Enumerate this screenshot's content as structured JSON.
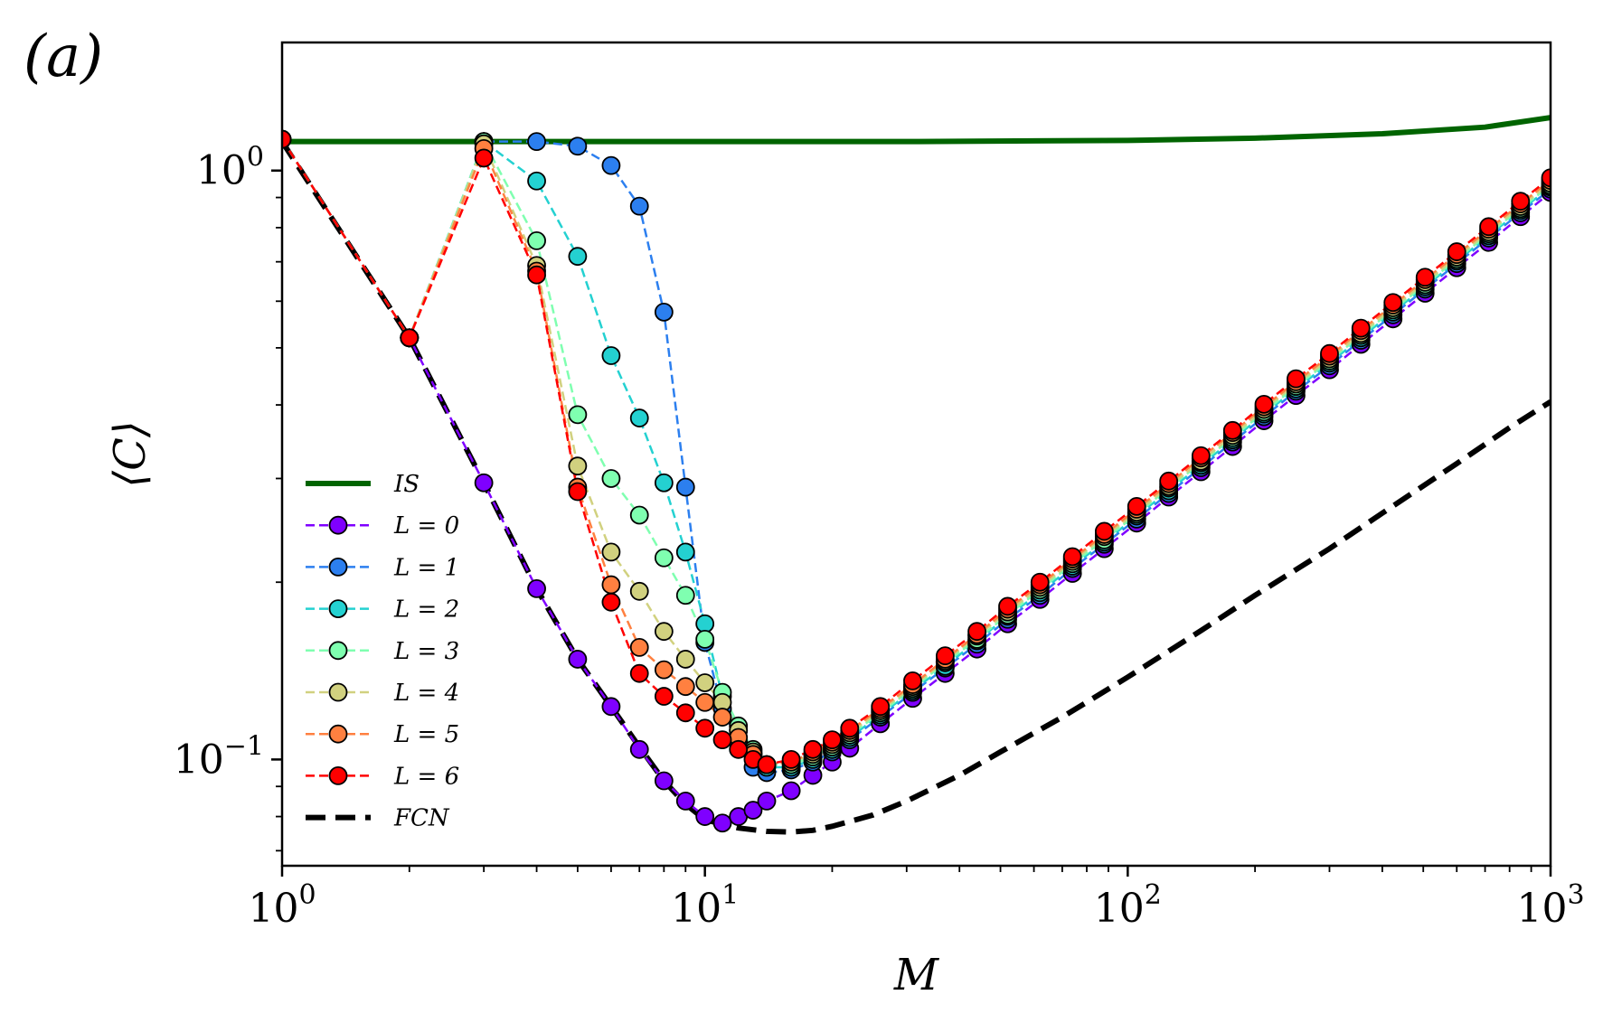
{
  "panel_label": "(a)",
  "chart_data": {
    "type": "line",
    "title": "",
    "xlabel": "M",
    "ylabel": "⟨C⟩",
    "xscale": "log",
    "yscale": "log",
    "xlim": [
      1,
      1000
    ],
    "ylim": [
      0.066,
      1.65
    ],
    "x_ticks": [
      {
        "value": 1,
        "base": "10",
        "exp": "0"
      },
      {
        "value": 10,
        "base": "10",
        "exp": "1"
      },
      {
        "value": 100,
        "base": "10",
        "exp": "2"
      },
      {
        "value": 1000,
        "base": "10",
        "exp": "3"
      }
    ],
    "y_ticks": [
      {
        "value": 0.1,
        "base": "10",
        "exp": "−1"
      },
      {
        "value": 1,
        "base": "10",
        "exp": "0"
      }
    ],
    "legend_position": "lower-left",
    "series": [
      {
        "name": "IS",
        "label": "IS",
        "color": "#006400",
        "style": "solid",
        "marker": false,
        "x": [
          1,
          3,
          10,
          30,
          100,
          200,
          400,
          700,
          1000
        ],
        "y": [
          1.12,
          1.12,
          1.12,
          1.12,
          1.125,
          1.135,
          1.155,
          1.185,
          1.23
        ]
      },
      {
        "name": "L = 0",
        "label": "L = 0",
        "color": "#7f00ff",
        "style": "dashed",
        "marker": true,
        "x": [
          1,
          2,
          3,
          4,
          5,
          6,
          7,
          8,
          9,
          10,
          11,
          12,
          13,
          14,
          16,
          18,
          20,
          22,
          26,
          31,
          37,
          44,
          52,
          62,
          74,
          88,
          105,
          125,
          149,
          177,
          210,
          250,
          300,
          356,
          424,
          505,
          600,
          714,
          849,
          1000
        ],
        "y": [
          1.13,
          0.52,
          0.295,
          0.195,
          0.148,
          0.123,
          0.104,
          0.092,
          0.085,
          0.08,
          0.078,
          0.08,
          0.082,
          0.085,
          0.0885,
          0.094,
          0.099,
          0.1045,
          0.115,
          0.127,
          0.14,
          0.154,
          0.17,
          0.187,
          0.207,
          0.228,
          0.252,
          0.279,
          0.308,
          0.34,
          0.376,
          0.415,
          0.459,
          0.507,
          0.56,
          0.619,
          0.684,
          0.755,
          0.835,
          0.918
        ]
      },
      {
        "name": "L = 1",
        "label": "L = 1",
        "color": "#2c7fef",
        "style": "dashed",
        "marker": true,
        "x": [
          1,
          2,
          3,
          4,
          5,
          6,
          7,
          8,
          9,
          10,
          11,
          12,
          13,
          14,
          16,
          18,
          20,
          22,
          26,
          31,
          37,
          44,
          52,
          62,
          74,
          88,
          105,
          125,
          149,
          177,
          210,
          250,
          300,
          356,
          424,
          505,
          600,
          714,
          849,
          1000
        ],
        "y": [
          1.13,
          0.52,
          1.12,
          1.12,
          1.1,
          1.02,
          0.87,
          0.575,
          0.29,
          0.158,
          0.122,
          0.107,
          0.097,
          0.095,
          0.096,
          0.099,
          0.103,
          0.108,
          0.118,
          0.13,
          0.143,
          0.157,
          0.173,
          0.19,
          0.211,
          0.232,
          0.256,
          0.283,
          0.313,
          0.346,
          0.382,
          0.422,
          0.466,
          0.515,
          0.569,
          0.629,
          0.695,
          0.768,
          0.848,
          0.93
        ]
      },
      {
        "name": "L = 2",
        "label": "L = 2",
        "color": "#24d1d1",
        "style": "dashed",
        "marker": true,
        "x": [
          1,
          2,
          3,
          4,
          5,
          6,
          7,
          8,
          9,
          10,
          11,
          12,
          13,
          14,
          16,
          18,
          20,
          22,
          26,
          31,
          37,
          44,
          52,
          62,
          74,
          88,
          105,
          125,
          149,
          177,
          210,
          250,
          300,
          356,
          424,
          505,
          600,
          714,
          849,
          1000
        ],
        "y": [
          1.13,
          0.52,
          1.12,
          0.96,
          0.715,
          0.485,
          0.38,
          0.295,
          0.225,
          0.17,
          0.128,
          0.112,
          0.102,
          0.097,
          0.097,
          0.1,
          0.104,
          0.109,
          0.119,
          0.131,
          0.144,
          0.159,
          0.175,
          0.192,
          0.213,
          0.234,
          0.259,
          0.286,
          0.316,
          0.349,
          0.386,
          0.426,
          0.471,
          0.52,
          0.575,
          0.635,
          0.702,
          0.775,
          0.856,
          0.938
        ]
      },
      {
        "name": "L = 3",
        "label": "L = 3",
        "color": "#7fffb0",
        "style": "dashed",
        "marker": true,
        "x": [
          1,
          2,
          3,
          4,
          5,
          6,
          7,
          8,
          9,
          10,
          11,
          12,
          13,
          14,
          16,
          18,
          20,
          22,
          26,
          31,
          37,
          44,
          52,
          62,
          74,
          88,
          105,
          125,
          149,
          177,
          210,
          250,
          300,
          356,
          424,
          505,
          600,
          714,
          849,
          1000
        ],
        "y": [
          1.13,
          0.52,
          1.12,
          0.76,
          0.385,
          0.3,
          0.26,
          0.22,
          0.19,
          0.16,
          0.13,
          0.114,
          0.104,
          0.098,
          0.098,
          0.101,
          0.105,
          0.11,
          0.12,
          0.132,
          0.146,
          0.16,
          0.176,
          0.194,
          0.215,
          0.236,
          0.261,
          0.289,
          0.319,
          0.352,
          0.389,
          0.43,
          0.475,
          0.525,
          0.58,
          0.64,
          0.707,
          0.781,
          0.862,
          0.944
        ]
      },
      {
        "name": "L = 4",
        "label": "L = 4",
        "color": "#d1d17f",
        "style": "dashed",
        "marker": true,
        "x": [
          1,
          2,
          3,
          4,
          5,
          6,
          7,
          8,
          9,
          10,
          11,
          12,
          13,
          14,
          16,
          18,
          20,
          22,
          26,
          31,
          37,
          44,
          52,
          62,
          74,
          88,
          105,
          125,
          149,
          177,
          210,
          250,
          300,
          356,
          424,
          505,
          600,
          714,
          849,
          1000
        ],
        "y": [
          1.13,
          0.52,
          1.11,
          0.69,
          0.315,
          0.225,
          0.193,
          0.165,
          0.148,
          0.135,
          0.125,
          0.112,
          0.103,
          0.098,
          0.099,
          0.102,
          0.106,
          0.111,
          0.121,
          0.133,
          0.147,
          0.162,
          0.178,
          0.196,
          0.217,
          0.239,
          0.263,
          0.291,
          0.321,
          0.355,
          0.393,
          0.434,
          0.479,
          0.529,
          0.585,
          0.646,
          0.713,
          0.787,
          0.869,
          0.952
        ]
      },
      {
        "name": "L = 5",
        "label": "L = 5",
        "color": "#ff8040",
        "style": "dashed",
        "marker": true,
        "x": [
          1,
          2,
          3,
          4,
          5,
          6,
          7,
          8,
          9,
          10,
          11,
          12,
          13,
          14,
          16,
          18,
          20,
          22,
          26,
          31,
          37,
          44,
          52,
          62,
          74,
          88,
          105,
          125,
          149,
          177,
          210,
          250,
          300,
          356,
          424,
          505,
          600,
          714,
          849,
          1000
        ],
        "y": [
          1.13,
          0.52,
          1.09,
          0.675,
          0.29,
          0.198,
          0.155,
          0.142,
          0.133,
          0.125,
          0.118,
          0.109,
          0.102,
          0.098,
          0.099,
          0.103,
          0.107,
          0.112,
          0.122,
          0.134,
          0.148,
          0.163,
          0.18,
          0.198,
          0.219,
          0.241,
          0.266,
          0.294,
          0.325,
          0.359,
          0.397,
          0.438,
          0.484,
          0.535,
          0.591,
          0.653,
          0.72,
          0.795,
          0.878,
          0.962
        ]
      },
      {
        "name": "L = 6",
        "label": "L = 6",
        "color": "#ff0000",
        "style": "dashed",
        "marker": true,
        "x": [
          1,
          2,
          3,
          4,
          5,
          6,
          7,
          8,
          9,
          10,
          11,
          12,
          13,
          14,
          16,
          18,
          20,
          22,
          26,
          31,
          37,
          44,
          52,
          62,
          74,
          88,
          105,
          125,
          149,
          177,
          210,
          250,
          300,
          356,
          424,
          505,
          600,
          714,
          849,
          1000
        ],
        "y": [
          1.13,
          0.52,
          1.05,
          0.665,
          0.285,
          0.185,
          0.14,
          0.128,
          0.12,
          0.113,
          0.108,
          0.104,
          0.1,
          0.098,
          0.1,
          0.104,
          0.108,
          0.113,
          0.123,
          0.136,
          0.15,
          0.165,
          0.182,
          0.2,
          0.221,
          0.244,
          0.269,
          0.297,
          0.328,
          0.362,
          0.401,
          0.443,
          0.489,
          0.54,
          0.597,
          0.659,
          0.728,
          0.803,
          0.887,
          0.972
        ]
      },
      {
        "name": "FCN",
        "label": "FCN",
        "color": "#000000",
        "style": "dashed-thick",
        "marker": false,
        "x": [
          1,
          2,
          3,
          4,
          5,
          6,
          7,
          8,
          9,
          10,
          12,
          14,
          16,
          18,
          20,
          25,
          30,
          40,
          50,
          70,
          100,
          150,
          200,
          300,
          400,
          600,
          800,
          1000
        ],
        "y": [
          1.12,
          0.52,
          0.295,
          0.195,
          0.148,
          0.123,
          0.105,
          0.092,
          0.084,
          0.079,
          0.0765,
          0.0755,
          0.0753,
          0.0758,
          0.077,
          0.0805,
          0.085,
          0.094,
          0.103,
          0.118,
          0.138,
          0.166,
          0.19,
          0.228,
          0.262,
          0.318,
          0.366,
          0.405
        ]
      }
    ]
  }
}
